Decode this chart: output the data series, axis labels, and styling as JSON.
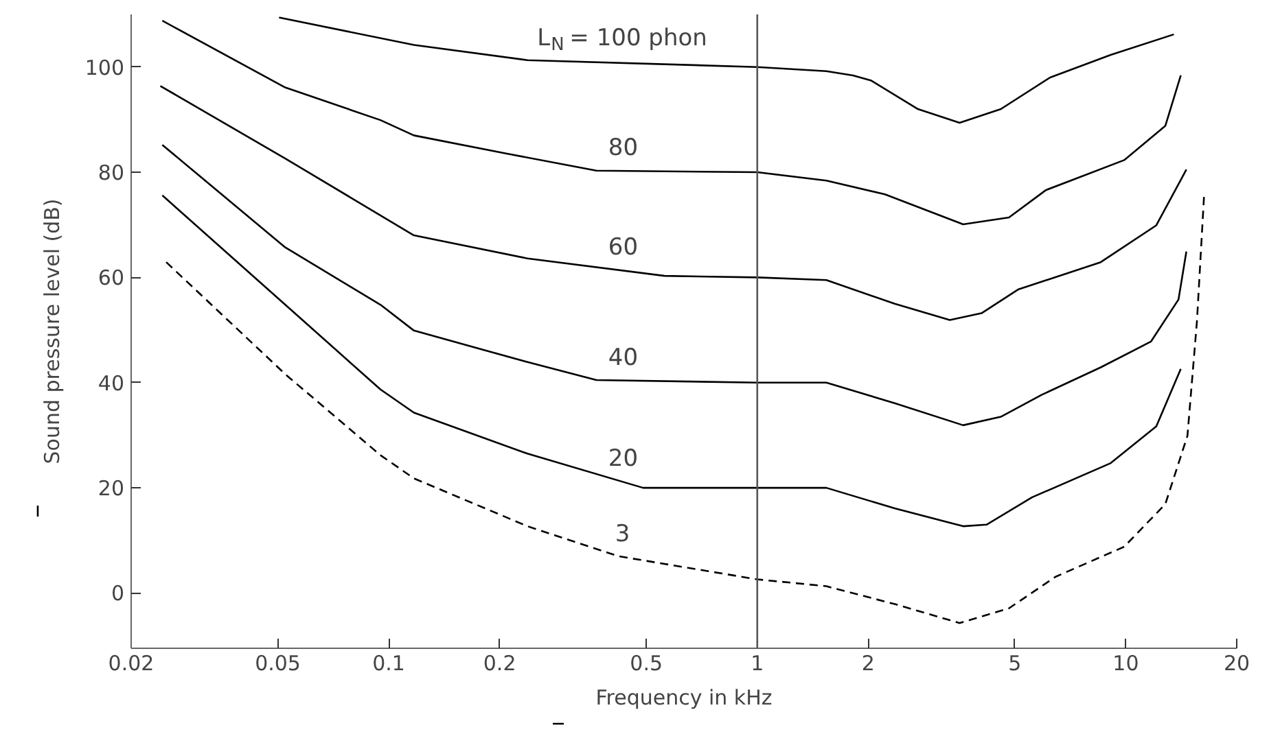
{
  "chart_data": {
    "type": "line",
    "xlabel": "Frequency in kHz",
    "ylabel": "Sound pressure level (dB)",
    "log": "x",
    "grid": false,
    "marker": "none",
    "line_style": "solid",
    "xlim": [
      0.02,
      20
    ],
    "ylim": [
      -10.5,
      110
    ],
    "xticks": [
      0.02,
      0.05,
      0.1,
      0.2,
      0.5,
      1,
      2,
      5,
      10,
      20
    ],
    "yticks": [
      0,
      20,
      40,
      60,
      80,
      100
    ],
    "series": [
      {
        "name": "L$_{N}$ = 100 phon",
        "color": "#000000",
        "x": [
          0.0504,
          0.117,
          0.238,
          1,
          1.54,
          1.82,
          2.04,
          2.73,
          3.54,
          4.58,
          6.23,
          9.1,
          13.5
        ],
        "values": [
          109.4,
          104.2,
          101.3,
          100,
          99.2,
          98.4,
          97.4,
          92,
          89.4,
          92,
          98,
          102.3,
          106.2
        ]
      },
      {
        "name": "80",
        "color": "#000000",
        "x": [
          0.0243,
          0.0524,
          0.095,
          0.117,
          0.207,
          0.366,
          1,
          1.54,
          2.22,
          3.62,
          4.82,
          6.07,
          9.9,
          12.8,
          14.1
        ],
        "values": [
          108.8,
          96.1,
          89.9,
          87,
          83.6,
          80.3,
          80,
          78.4,
          75.8,
          70.1,
          71.4,
          76.6,
          82.3,
          88.8,
          98.4
        ]
      },
      {
        "name": "60",
        "color": "#000000",
        "x": [
          0.024,
          0.0524,
          0.117,
          0.238,
          0.56,
          1,
          1.54,
          2.36,
          3.33,
          4.06,
          5.1,
          8.55,
          12.1,
          14.6
        ],
        "values": [
          96.4,
          82.6,
          68,
          63.6,
          60.3,
          60,
          59.5,
          55,
          51.9,
          53.2,
          57.7,
          62.9,
          69.9,
          80.5
        ]
      },
      {
        "name": "40",
        "color": "#000000",
        "x": [
          0.0243,
          0.0524,
          0.095,
          0.117,
          0.238,
          0.366,
          1,
          1.54,
          2.36,
          3.62,
          4.58,
          5.92,
          8.55,
          11.7,
          13.9,
          14.6
        ],
        "values": [
          85.2,
          65.7,
          54.8,
          49.9,
          43.9,
          40.5,
          40,
          40,
          36.1,
          31.9,
          33.5,
          37.7,
          42.9,
          47.8,
          55.8,
          64.9
        ]
      },
      {
        "name": "20",
        "color": "#000000",
        "x": [
          0.0243,
          0.0524,
          0.095,
          0.117,
          0.238,
          0.49,
          1,
          1.54,
          2.36,
          3.62,
          4.19,
          5.57,
          9.1,
          12.1,
          14.1
        ],
        "values": [
          75.6,
          54.8,
          38.7,
          34.3,
          26.5,
          20,
          20,
          20,
          16.1,
          12.7,
          13,
          18.2,
          24.7,
          31.7,
          42.6
        ]
      },
      {
        "name": "3",
        "color": "#000000",
        "line_style": "dashed",
        "x": [
          0.0249,
          0.0524,
          0.095,
          0.117,
          0.238,
          0.42,
          1,
          1.54,
          2.36,
          3.54,
          4.82,
          6.45,
          9.9,
          12.8,
          14.7,
          15.6,
          16.3
        ],
        "values": [
          62.9,
          41.6,
          26.2,
          21.8,
          12.7,
          7,
          2.6,
          1.3,
          -2.1,
          -5.7,
          -2.9,
          3.1,
          8.8,
          16.9,
          29.9,
          51.7,
          75.3
        ]
      }
    ],
    "ref_lines": [
      {
        "axis": "x",
        "value": 1,
        "color": "#555555"
      }
    ]
  }
}
